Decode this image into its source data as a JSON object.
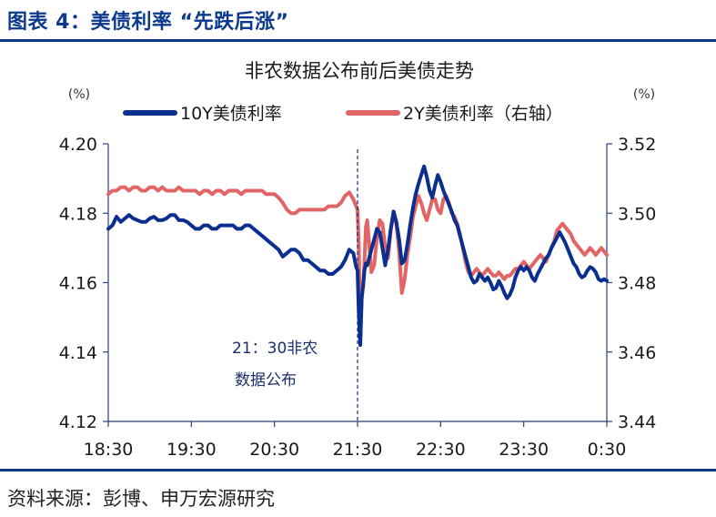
{
  "header": {
    "figure_title": "图表 4：美债利率 “先跌后涨”"
  },
  "footer": {
    "source": "资料来源：彭博、申万宏源研究"
  },
  "colors": {
    "brand_blue": "#0b3a8c",
    "series_10y": "#0a2f8f",
    "series_2y": "#e26565"
  },
  "chart_data": {
    "type": "line",
    "title": "非农数据公布前后美债走势",
    "left_unit": "(%)",
    "right_unit": "(%)",
    "x_tick_labels": [
      "18:30",
      "19:30",
      "20:30",
      "21:30",
      "22:30",
      "23:30",
      "0:30"
    ],
    "xlim_minutes": [
      0,
      360
    ],
    "ylim_left": [
      4.12,
      4.2
    ],
    "ylim_right": [
      3.44,
      3.52
    ],
    "y_ticks_left": [
      "4.12",
      "4.14",
      "4.16",
      "4.18",
      "4.20"
    ],
    "y_ticks_right": [
      "3.44",
      "3.46",
      "3.48",
      "3.50",
      "3.52"
    ],
    "legend": {
      "position": "top",
      "items": [
        "10Y美债利率",
        "2Y美债利率（右轴）"
      ]
    },
    "annotation": {
      "x_minutes": 180,
      "line1": "21：30非农",
      "line2": "数据公布"
    },
    "series": [
      {
        "name": "10Y美债利率",
        "axis": "left",
        "x": [
          0,
          3,
          6,
          9,
          12,
          15,
          18,
          21,
          24,
          27,
          30,
          33,
          36,
          39,
          42,
          45,
          48,
          51,
          54,
          57,
          60,
          63,
          66,
          69,
          72,
          75,
          78,
          81,
          84,
          87,
          90,
          93,
          96,
          99,
          102,
          105,
          108,
          111,
          114,
          117,
          120,
          123,
          126,
          129,
          132,
          135,
          138,
          141,
          144,
          147,
          150,
          153,
          156,
          159,
          162,
          165,
          168,
          171,
          174,
          177,
          179,
          180,
          181,
          182,
          183,
          184,
          185,
          186,
          187,
          188,
          190,
          192,
          194,
          196,
          198,
          200,
          202,
          204,
          206,
          208,
          210,
          212,
          214,
          216,
          218,
          220,
          222,
          224,
          226,
          228,
          230,
          232,
          234,
          236,
          238,
          240,
          242,
          244,
          246,
          248,
          250,
          252,
          254,
          256,
          258,
          260,
          262,
          264,
          266,
          268,
          270,
          272,
          274,
          276,
          278,
          280,
          282,
          284,
          286,
          288,
          290,
          292,
          294,
          296,
          298,
          300,
          302,
          304,
          306,
          308,
          310,
          312,
          314,
          316,
          318,
          320,
          322,
          324,
          326,
          328,
          330,
          332,
          334,
          336,
          338,
          340,
          342,
          344,
          346,
          348,
          350,
          352,
          354,
          356,
          358,
          360
        ],
        "y": [
          4.1755,
          4.1765,
          4.179,
          4.1775,
          4.1785,
          4.1795,
          4.1785,
          4.178,
          4.1775,
          4.1775,
          4.1785,
          4.179,
          4.178,
          4.178,
          4.1785,
          4.1795,
          4.1795,
          4.178,
          4.178,
          4.1775,
          4.1765,
          4.1755,
          4.1755,
          4.1765,
          4.1765,
          4.1755,
          4.1755,
          4.1765,
          4.1765,
          4.1765,
          4.1765,
          4.1755,
          4.1755,
          4.1765,
          4.1765,
          4.1755,
          4.1745,
          4.1735,
          4.1725,
          4.1715,
          4.1705,
          4.1695,
          4.1675,
          4.1685,
          4.1695,
          4.1695,
          4.1685,
          4.1665,
          4.1665,
          4.1655,
          4.1645,
          4.1635,
          4.1635,
          4.1625,
          4.1625,
          4.1635,
          4.1645,
          4.1665,
          4.1695,
          4.1685,
          4.1645,
          4.1635,
          4.15,
          4.142,
          4.1555,
          4.159,
          4.1635,
          4.1655,
          4.165,
          4.1665,
          4.1695,
          4.1725,
          4.1755,
          4.1745,
          4.17,
          4.165,
          4.1695,
          4.1755,
          4.1805,
          4.1775,
          4.1725,
          4.1655,
          4.1665,
          4.171,
          4.1765,
          4.1815,
          4.1855,
          4.1885,
          4.191,
          4.1935,
          4.1905,
          4.1865,
          4.1845,
          4.188,
          4.191,
          4.189,
          4.1865,
          4.1845,
          4.1825,
          4.1805,
          4.178,
          4.1765,
          4.1735,
          4.1705,
          4.1675,
          4.1645,
          4.1615,
          4.16,
          4.1605,
          4.1625,
          4.1615,
          4.1605,
          4.1615,
          4.16,
          4.158,
          4.1585,
          4.1605,
          4.159,
          4.157,
          4.1555,
          4.1565,
          4.1585,
          4.1615,
          4.1635,
          4.1645,
          4.1635,
          4.1645,
          4.1635,
          4.1615,
          4.1605,
          4.1625,
          4.164,
          4.1655,
          4.167,
          4.168,
          4.17,
          4.1715,
          4.173,
          4.1745,
          4.173,
          4.1715,
          4.1695,
          4.1675,
          4.1655,
          4.1645,
          4.1625,
          4.1615,
          4.162,
          4.1635,
          4.1645,
          4.164,
          4.163,
          4.161,
          4.1605,
          4.161,
          4.1605
        ]
      },
      {
        "name": "2Y美债利率（右轴）",
        "axis": "right",
        "x": [
          0,
          3,
          6,
          9,
          12,
          15,
          18,
          21,
          24,
          27,
          30,
          33,
          36,
          39,
          42,
          45,
          48,
          51,
          54,
          57,
          60,
          63,
          66,
          69,
          72,
          75,
          78,
          81,
          84,
          87,
          90,
          93,
          96,
          99,
          102,
          105,
          108,
          111,
          114,
          117,
          120,
          123,
          126,
          129,
          132,
          135,
          138,
          141,
          144,
          147,
          150,
          153,
          156,
          159,
          162,
          165,
          168,
          171,
          174,
          177,
          179,
          180,
          181,
          182,
          183,
          184,
          185,
          186,
          187,
          188,
          190,
          192,
          194,
          196,
          198,
          200,
          202,
          204,
          206,
          208,
          210,
          212,
          214,
          216,
          218,
          220,
          222,
          224,
          226,
          228,
          230,
          232,
          234,
          236,
          238,
          240,
          242,
          244,
          246,
          248,
          250,
          252,
          254,
          256,
          258,
          260,
          262,
          264,
          266,
          268,
          270,
          272,
          274,
          276,
          278,
          280,
          282,
          284,
          286,
          288,
          290,
          292,
          294,
          296,
          298,
          300,
          302,
          304,
          306,
          308,
          310,
          312,
          314,
          316,
          318,
          320,
          322,
          324,
          326,
          328,
          330,
          332,
          334,
          336,
          338,
          340,
          342,
          344,
          346,
          348,
          350,
          352,
          354,
          356,
          358,
          360
        ],
        "y": [
          3.5055,
          3.5065,
          3.5065,
          3.5075,
          3.5075,
          3.5065,
          3.5075,
          3.5075,
          3.5065,
          3.5065,
          3.5075,
          3.5075,
          3.5065,
          3.5075,
          3.5065,
          3.5065,
          3.5065,
          3.5075,
          3.5065,
          3.5065,
          3.5065,
          3.5065,
          3.5055,
          3.5065,
          3.5065,
          3.5055,
          3.5065,
          3.5065,
          3.5055,
          3.5065,
          3.5065,
          3.5065,
          3.5055,
          3.5065,
          3.5065,
          3.5065,
          3.5065,
          3.5065,
          3.5055,
          3.5055,
          3.5055,
          3.5045,
          3.503,
          3.501,
          3.5,
          3.5,
          3.501,
          3.501,
          3.501,
          3.501,
          3.501,
          3.501,
          3.501,
          3.502,
          3.502,
          3.502,
          3.503,
          3.505,
          3.506,
          3.504,
          3.502,
          3.501,
          3.49,
          3.463,
          3.476,
          3.479,
          3.486,
          3.496,
          3.498,
          3.493,
          3.483,
          3.485,
          3.493,
          3.498,
          3.497,
          3.49,
          3.487,
          3.495,
          3.5,
          3.497,
          3.489,
          3.477,
          3.481,
          3.488,
          3.493,
          3.499,
          3.502,
          3.505,
          3.503,
          3.5,
          3.498,
          3.501,
          3.504,
          3.504,
          3.501,
          3.5,
          3.504,
          3.505,
          3.503,
          3.5,
          3.499,
          3.497,
          3.494,
          3.49,
          3.486,
          3.483,
          3.482,
          3.483,
          3.484,
          3.483,
          3.482,
          3.483,
          3.484,
          3.483,
          3.482,
          3.482,
          3.483,
          3.482,
          3.481,
          3.482,
          3.482,
          3.483,
          3.484,
          3.484,
          3.485,
          3.486,
          3.485,
          3.484,
          3.485,
          3.486,
          3.487,
          3.488,
          3.487,
          3.486,
          3.488,
          3.49,
          3.492,
          3.495,
          3.496,
          3.497,
          3.496,
          3.495,
          3.494,
          3.492,
          3.491,
          3.49,
          3.489,
          3.488,
          3.489,
          3.49,
          3.489,
          3.488,
          3.489,
          3.49,
          3.489,
          3.488
        ]
      }
    ]
  }
}
